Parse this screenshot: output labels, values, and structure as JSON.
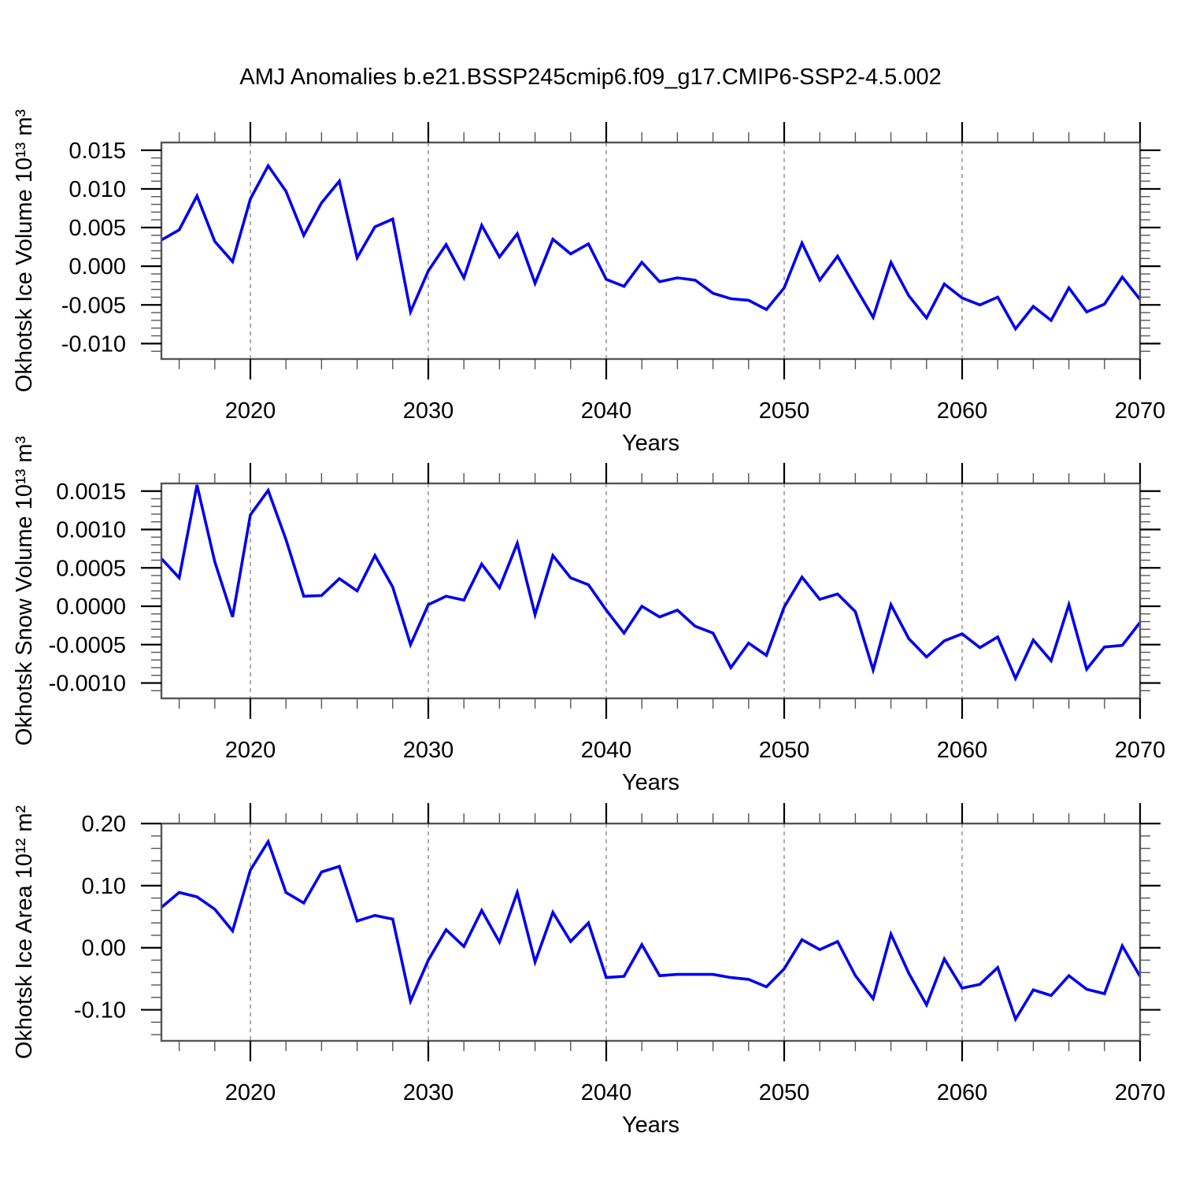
{
  "title": "AMJ Anomalies b.e21.BSSP245cmip6.f09_g17.CMIP6-SSP2-4.5.002",
  "chart_data": {
    "type": "line",
    "title": "AMJ Anomalies b.e21.BSSP245cmip6.f09_g17.CMIP6-SSP2-4.5.002",
    "xlabel": "Years",
    "line_color": "#0000ee",
    "grid": "vertical-dashed",
    "legend_position": "none",
    "x_range": [
      2015,
      2070
    ],
    "x_major_ticks": [
      2020,
      2030,
      2040,
      2050,
      2060,
      2070
    ],
    "x_minor_step": 2,
    "gridline_years": [
      2020,
      2030,
      2040,
      2050,
      2060
    ],
    "years": [
      2015,
      2016,
      2017,
      2018,
      2019,
      2020,
      2021,
      2022,
      2023,
      2024,
      2025,
      2026,
      2027,
      2028,
      2029,
      2030,
      2031,
      2032,
      2033,
      2034,
      2035,
      2036,
      2037,
      2038,
      2039,
      2040,
      2041,
      2042,
      2043,
      2044,
      2045,
      2046,
      2047,
      2048,
      2049,
      2050,
      2051,
      2052,
      2053,
      2054,
      2055,
      2056,
      2057,
      2058,
      2059,
      2060,
      2061,
      2062,
      2063,
      2064,
      2065,
      2066,
      2067,
      2068,
      2069,
      2070
    ],
    "panels": [
      {
        "id": "ice-volume",
        "ylabel": "Okhotsk Ice Volume 10¹³ m³",
        "ylim": [
          -0.012,
          0.016
        ],
        "y_major": [
          0.015,
          0.01,
          0.005,
          0.0,
          -0.005,
          -0.01
        ],
        "y_major_labels": [
          "0.015",
          "0.010",
          "0.005",
          "0.000",
          "-0.005",
          "-0.010"
        ],
        "y_minor_step": 0.001,
        "values": [
          0.0034,
          0.0047,
          0.0091,
          0.0032,
          0.0006,
          0.0087,
          0.013,
          0.0097,
          0.004,
          0.0082,
          0.011,
          0.0011,
          0.0051,
          0.0061,
          -0.0059,
          -0.0006,
          0.0028,
          -0.0015,
          0.0053,
          0.0012,
          0.0042,
          -0.0022,
          0.0035,
          0.0016,
          0.0029,
          -0.0017,
          -0.0026,
          0.0005,
          -0.002,
          -0.0015,
          -0.0018,
          -0.0035,
          -0.0042,
          -0.0044,
          -0.0056,
          -0.0028,
          0.003,
          -0.0018,
          0.0013,
          -0.0027,
          -0.0066,
          0.0005,
          -0.0038,
          -0.0067,
          -0.0023,
          -0.0041,
          -0.005,
          -0.004,
          -0.0081,
          -0.0052,
          -0.007,
          -0.0028,
          -0.0059,
          -0.0049,
          -0.0014,
          -0.0043
        ]
      },
      {
        "id": "snow-volume",
        "ylabel": "Okhotsk Snow Volume 10¹³ m³",
        "ylim": [
          -0.0012,
          0.0016
        ],
        "y_major": [
          0.0015,
          0.001,
          0.0005,
          0.0,
          -0.0005,
          -0.001
        ],
        "y_major_labels": [
          "0.0015",
          "0.0010",
          "0.0005",
          "0.0000",
          "-0.0005",
          "-0.0010"
        ],
        "y_minor_step": 0.0001,
        "values": [
          0.00062,
          0.00037,
          0.00158,
          0.00058,
          -0.00014,
          0.00119,
          0.00151,
          0.00087,
          0.00013,
          0.00014,
          0.00036,
          0.0002,
          0.00066,
          0.00025,
          -0.0005,
          2e-05,
          0.00013,
          8e-05,
          0.00055,
          0.00024,
          0.00082,
          -0.00011,
          0.00066,
          0.00037,
          0.00028,
          -5e-05,
          -0.00035,
          0.0,
          -0.00014,
          -5e-05,
          -0.00026,
          -0.00035,
          -0.0008,
          -0.00048,
          -0.00064,
          -1e-05,
          0.00038,
          9e-05,
          0.00016,
          -7e-05,
          -0.00083,
          2e-05,
          -0.00042,
          -0.00066,
          -0.00045,
          -0.00036,
          -0.00054,
          -0.0004,
          -0.00094,
          -0.00044,
          -0.00071,
          2e-05,
          -0.00082,
          -0.00053,
          -0.00051,
          -0.00021
        ]
      },
      {
        "id": "ice-area",
        "ylabel": "Okhotsk Ice Area 10¹² m²",
        "ylim": [
          -0.15,
          0.2
        ],
        "y_major": [
          0.2,
          0.1,
          0.0,
          -0.1
        ],
        "y_major_labels": [
          "0.20",
          "0.10",
          "0.00",
          "-0.10"
        ],
        "y_minor_step": 0.02,
        "values": [
          0.065,
          0.089,
          0.082,
          0.062,
          0.027,
          0.125,
          0.171,
          0.089,
          0.072,
          0.122,
          0.131,
          0.043,
          0.052,
          0.046,
          -0.086,
          -0.02,
          0.029,
          0.002,
          0.06,
          0.009,
          0.089,
          -0.023,
          0.057,
          0.01,
          0.04,
          -0.048,
          -0.046,
          0.005,
          -0.045,
          -0.043,
          -0.043,
          -0.043,
          -0.048,
          -0.051,
          -0.063,
          -0.034,
          0.013,
          -0.003,
          0.01,
          -0.045,
          -0.082,
          0.022,
          -0.041,
          -0.092,
          -0.018,
          -0.065,
          -0.059,
          -0.032,
          -0.115,
          -0.068,
          -0.077,
          -0.045,
          -0.067,
          -0.074,
          0.003,
          -0.046
        ]
      }
    ]
  }
}
